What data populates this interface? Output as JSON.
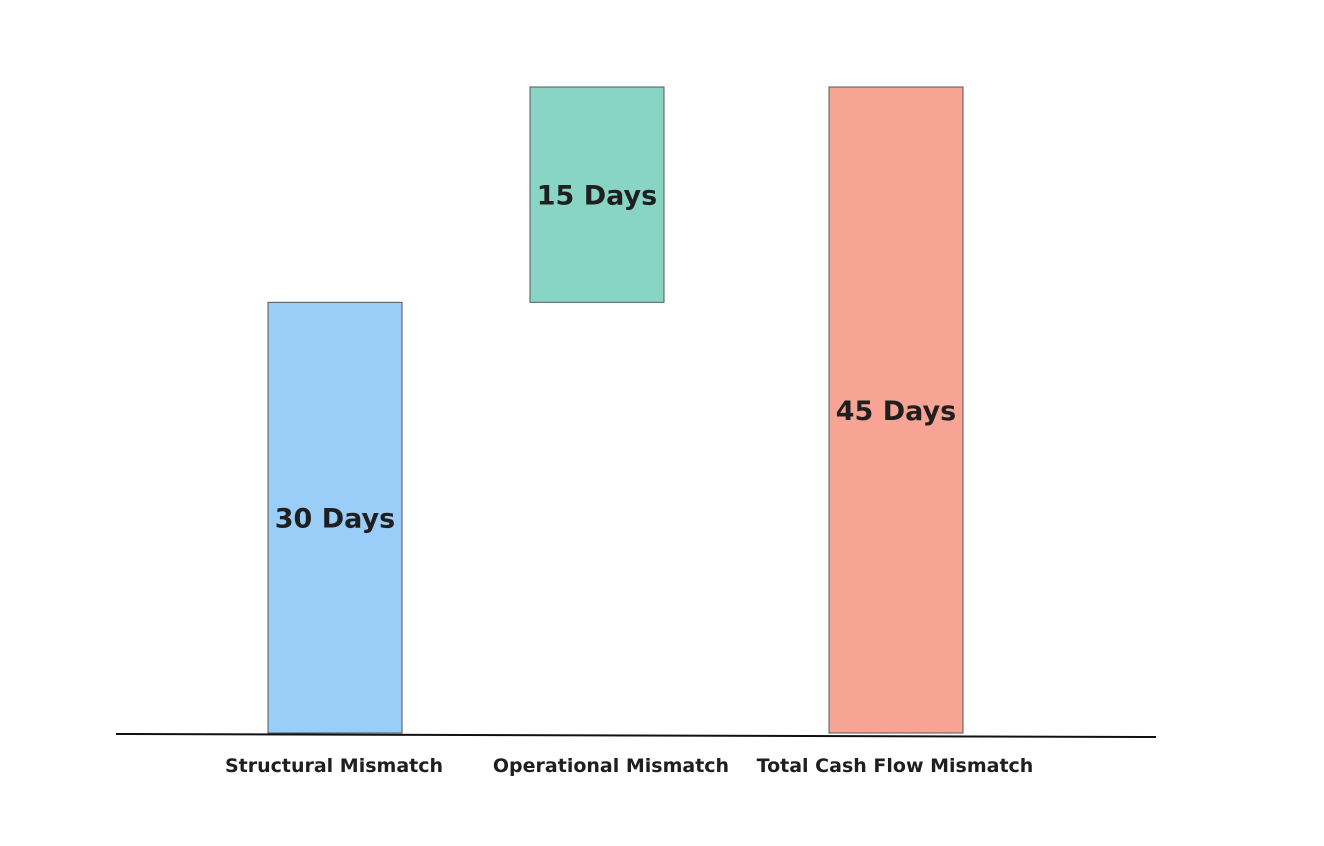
{
  "chart_data": {
    "type": "bar",
    "subtype": "waterfall",
    "categories": [
      "Structural Mismatch",
      "Operational Mismatch",
      "Total Cash Flow Mismatch"
    ],
    "bars": [
      {
        "category": "Structural Mismatch",
        "start": 0,
        "end": 30,
        "label": "30 Days",
        "color": "#9acdf7"
      },
      {
        "category": "Operational Mismatch",
        "start": 30,
        "end": 45,
        "label": "15 Days",
        "color": "#88d5c5"
      },
      {
        "category": "Total Cash Flow Mismatch",
        "start": 0,
        "end": 45,
        "label": "45 Days",
        "color": "#f7a494"
      }
    ],
    "unit": "Days",
    "ylim": [
      0,
      45
    ],
    "title": "",
    "xlabel": "",
    "ylabel": "",
    "grid": false,
    "legend": "none"
  }
}
